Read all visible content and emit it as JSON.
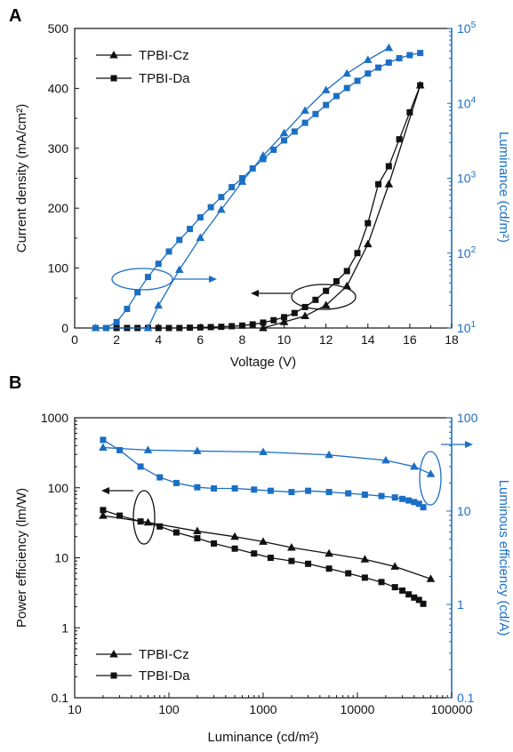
{
  "colors": {
    "black": "#111111",
    "blue": "#1a6fc4"
  },
  "chart_data": [
    {
      "panel": "A",
      "type": "line",
      "xlabel": "Voltage (V)",
      "ylabel": "Current density (mA/cm²)",
      "y2label": "Luminance (cd/m²)",
      "xlim": [
        0,
        18
      ],
      "ylim": [
        0,
        500
      ],
      "y2lim": [
        10,
        100000
      ],
      "y2scale": "log",
      "xticks": [
        "0",
        "2",
        "4",
        "6",
        "8",
        "10",
        "12",
        "14",
        "16",
        "18"
      ],
      "yticks": [
        "0",
        "100",
        "200",
        "300",
        "400",
        "500"
      ],
      "y2ticks": [
        "10",
        "10",
        "10",
        "10",
        "10"
      ],
      "y2ticks_exp": [
        "1",
        "2",
        "3",
        "4",
        "5"
      ],
      "legend": [
        "TPBI-Cz",
        "TPBI-Da"
      ],
      "legend_position": "top-left",
      "series": [
        {
          "name": "TPBI-Cz",
          "marker": "triangle",
          "color": "black",
          "axis": "left",
          "x": [
            9,
            10,
            11,
            12,
            13,
            14,
            15,
            16.5
          ],
          "y": [
            0,
            10,
            20,
            38,
            70,
            140,
            240,
            405
          ]
        },
        {
          "name": "TPBI-Da",
          "marker": "square",
          "color": "black",
          "axis": "left",
          "x": [
            1.0,
            1.5,
            2.0,
            2.5,
            3.0,
            3.5,
            4.0,
            4.5,
            5.0,
            5.5,
            6.0,
            6.5,
            7.0,
            7.5,
            8.0,
            8.5,
            9.0,
            9.5,
            10.0,
            10.5,
            11.0,
            11.5,
            12.0,
            12.5,
            13.0,
            13.5,
            14.0,
            14.5,
            15.0,
            15.5,
            16.0,
            16.5
          ],
          "y": [
            0,
            0,
            0,
            0,
            0,
            0,
            0,
            0,
            0,
            0.5,
            1,
            1.5,
            2,
            3,
            4,
            6,
            9,
            13,
            18,
            25,
            35,
            47,
            62,
            78,
            95,
            125,
            175,
            240,
            270,
            315,
            360,
            405
          ]
        },
        {
          "name": "TPBI-Cz",
          "marker": "triangle",
          "color": "blue",
          "axis": "right",
          "x": [
            1.0,
            3.5,
            4.0,
            5.0,
            6.0,
            7.0,
            8.0,
            9.0,
            10.0,
            11.0,
            12.0,
            13.0,
            14.0,
            15.0
          ],
          "y": [
            10,
            10,
            20,
            60,
            160,
            380,
            900,
            2000,
            4000,
            8000,
            15000,
            25000,
            38000,
            55000
          ]
        },
        {
          "name": "TPBI-Da",
          "marker": "square",
          "color": "blue",
          "axis": "right",
          "x": [
            1.0,
            1.5,
            2.0,
            2.5,
            3.0,
            3.5,
            4.0,
            4.5,
            5.0,
            5.5,
            6.0,
            6.5,
            7.0,
            7.5,
            8.0,
            8.5,
            9.0,
            9.5,
            10.0,
            10.5,
            11.0,
            11.5,
            12.0,
            12.5,
            13.0,
            13.5,
            14.0,
            14.5,
            15.0,
            15.5,
            16.0,
            16.5
          ],
          "y": [
            10,
            10,
            12,
            18,
            30,
            48,
            72,
            105,
            150,
            210,
            300,
            410,
            560,
            760,
            1000,
            1350,
            1800,
            2400,
            3200,
            4200,
            5500,
            7200,
            9500,
            12500,
            16000,
            20000,
            25000,
            30000,
            35000,
            40000,
            44000,
            47000
          ]
        }
      ]
    },
    {
      "panel": "B",
      "type": "line",
      "xlabel": "Luminance (cd/m²)",
      "ylabel": "Power efficiency (lm/W)",
      "y2label": "Luminous efficiency (cd/A)",
      "xscale": "log",
      "yscale": "log",
      "y2scale": "log",
      "xlim": [
        10,
        100000
      ],
      "ylim": [
        0.1,
        1000
      ],
      "y2lim": [
        0.1,
        100
      ],
      "xticks": [
        "10",
        "100",
        "1000",
        "10000",
        "100000"
      ],
      "yticks": [
        "0.1",
        "1",
        "10",
        "100",
        "1000"
      ],
      "y2ticks": [
        "0.1",
        "1",
        "10",
        "100"
      ],
      "legend": [
        "TPBI-Cz",
        "TPBI-Da"
      ],
      "legend_position": "bottom-left",
      "series": [
        {
          "name": "TPBI-Cz",
          "marker": "triangle",
          "color": "black",
          "axis": "left",
          "x": [
            20,
            60,
            200,
            500,
            1000,
            2000,
            5000,
            12000,
            25000,
            60000
          ],
          "y": [
            40,
            32,
            24,
            20,
            17,
            14,
            11.5,
            9.5,
            7.5,
            5
          ]
        },
        {
          "name": "TPBI-Da",
          "marker": "square",
          "color": "black",
          "axis": "left",
          "x": [
            20,
            30,
            50,
            80,
            120,
            200,
            300,
            500,
            800,
            1200,
            2000,
            3000,
            5000,
            8000,
            12000,
            18000,
            25000,
            30000,
            35000,
            40000,
            45000,
            50000
          ],
          "y": [
            48,
            40,
            33,
            28,
            23,
            19,
            16,
            13.5,
            11.5,
            10,
            9,
            8.2,
            7,
            6,
            5.2,
            4.5,
            3.8,
            3.4,
            3.0,
            2.7,
            2.5,
            2.2
          ]
        },
        {
          "name": "TPBI-Cz",
          "marker": "triangle",
          "color": "blue",
          "axis": "right",
          "x": [
            20,
            60,
            200,
            1000,
            5000,
            20000,
            40000,
            60000
          ],
          "y": [
            48,
            45,
            44,
            43,
            40,
            35,
            30,
            25
          ]
        },
        {
          "name": "TPBI-Da",
          "marker": "square",
          "color": "blue",
          "axis": "right",
          "x": [
            20,
            30,
            50,
            80,
            120,
            200,
            300,
            500,
            800,
            1200,
            2000,
            3000,
            5000,
            8000,
            12000,
            18000,
            25000,
            30000,
            35000,
            40000,
            45000,
            50000
          ],
          "y": [
            58,
            45,
            30,
            23,
            20,
            18,
            17.5,
            17.5,
            17,
            16.5,
            16,
            16.5,
            16,
            15.5,
            15,
            14.5,
            14,
            13.5,
            13,
            12.5,
            12,
            11
          ]
        }
      ]
    }
  ]
}
